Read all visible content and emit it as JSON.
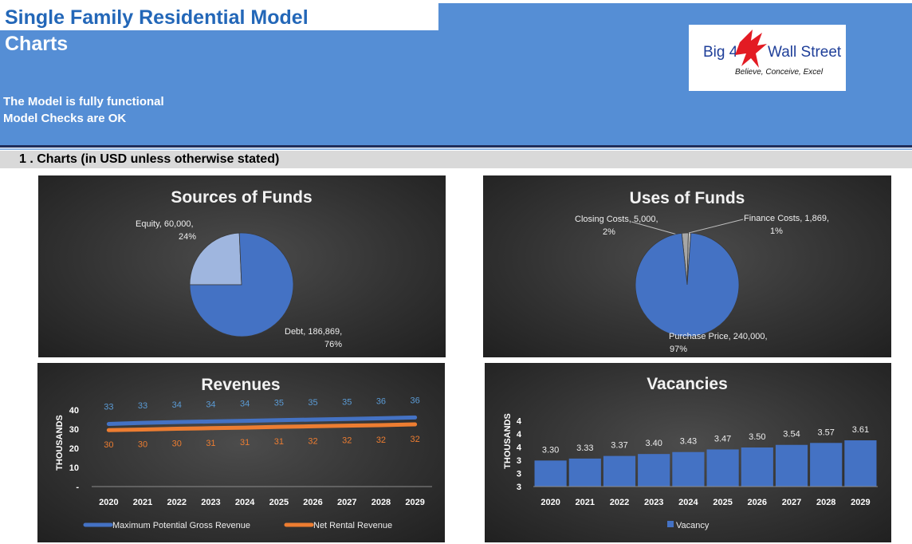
{
  "header": {
    "title": "Single Family Residential Model",
    "subtitle": "Charts",
    "status_line_1": "The Model is fully functional",
    "status_line_2": "Model Checks are OK"
  },
  "logo": {
    "name_left": "Big 4",
    "name_right": "Wall Street",
    "tagline": "Believe, Conceive, Excel",
    "icon": "eagle-icon"
  },
  "section": {
    "title": "1 . Charts (in USD unless otherwise stated)"
  },
  "colors": {
    "header_blue": "#558ed5",
    "title_blue": "#2367b8",
    "series_blue": "#4472c4",
    "series_orange": "#ed7d31",
    "light_slice": "#9fb6df",
    "grey_slice": "#a6a6a6"
  },
  "chart_data": [
    {
      "type": "pie",
      "title": "Sources of Funds",
      "slices": [
        {
          "label": "Equity",
          "value": 60000,
          "value_text": "60,000",
          "percent": "24%",
          "color": "#9fb6df"
        },
        {
          "label": "Debt",
          "value": 186869,
          "value_text": "186,869",
          "percent": "76%",
          "color": "#4472c4"
        }
      ]
    },
    {
      "type": "pie",
      "title": "Uses of Funds",
      "slices": [
        {
          "label": "Closing Costs",
          "value": 5000,
          "value_text": "5,000",
          "percent": "2%",
          "color": "#a6a6a6"
        },
        {
          "label": "Finance Costs",
          "value": 1869,
          "value_text": "1,869",
          "percent": "1%",
          "color": "#c0c0c0"
        },
        {
          "label": "Purchase Price",
          "value": 240000,
          "value_text": "240,000",
          "percent": "97%",
          "color": "#4472c4"
        }
      ]
    },
    {
      "type": "line",
      "title": "Revenues",
      "ylabel": "THOUSANDS",
      "ylim": [
        0,
        40
      ],
      "yticks": [
        "-",
        "10",
        "20",
        "30",
        "40"
      ],
      "categories": [
        "2020",
        "2021",
        "2022",
        "2023",
        "2024",
        "2025",
        "2026",
        "2027",
        "2028",
        "2029"
      ],
      "legend_position": "bottom",
      "series": [
        {
          "name": "Maximum Potential Gross Revenue",
          "color": "#4472c4",
          "label_color": "#5b9bd5",
          "values": [
            32.7,
            33.3,
            33.7,
            34.0,
            34.3,
            34.7,
            35.0,
            35.3,
            35.7,
            36.1
          ],
          "labels": [
            "33",
            "33",
            "34",
            "34",
            "34",
            "35",
            "35",
            "35",
            "36",
            "36"
          ]
        },
        {
          "name": "Net Rental Revenue",
          "color": "#ed7d31",
          "label_color": "#ed7d31",
          "values": [
            29.5,
            29.8,
            30.2,
            30.5,
            30.8,
            31.2,
            31.5,
            31.8,
            32.1,
            32.5
          ],
          "labels": [
            "30",
            "30",
            "30",
            "31",
            "31",
            "31",
            "32",
            "32",
            "32",
            "32"
          ]
        }
      ]
    },
    {
      "type": "bar",
      "title": "Vacancies",
      "ylabel": "THOUSANDS",
      "ylim": [
        2.9,
        4.1
      ],
      "yticks": [
        "3",
        "3",
        "3",
        "4",
        "4",
        "4"
      ],
      "categories": [
        "2020",
        "2021",
        "2022",
        "2023",
        "2024",
        "2025",
        "2026",
        "2027",
        "2028",
        "2029"
      ],
      "legend_position": "bottom",
      "series": [
        {
          "name": "Vacancy",
          "color": "#4472c4",
          "values": [
            3.3,
            3.33,
            3.37,
            3.4,
            3.43,
            3.47,
            3.5,
            3.54,
            3.57,
            3.61
          ],
          "labels": [
            "3.30",
            "3.33",
            "3.37",
            "3.40",
            "3.43",
            "3.47",
            "3.50",
            "3.54",
            "3.57",
            "3.61"
          ]
        }
      ]
    }
  ]
}
